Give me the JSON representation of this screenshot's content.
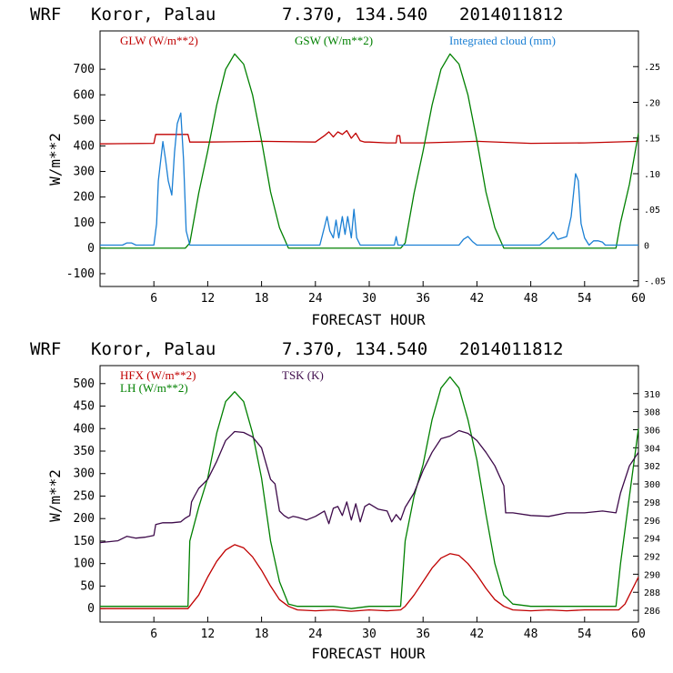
{
  "chart_data": [
    {
      "type": "line",
      "header": {
        "model": "WRF",
        "location": "Koror, Palau",
        "coords": "7.370, 134.540",
        "init": "2014011812"
      },
      "xlabel": "FORECAST HOUR",
      "ylabel": "W/m**2",
      "xlim": [
        0,
        60
      ],
      "ylim": [
        -150,
        850
      ],
      "y2lim": [
        -0.058,
        0.3
      ],
      "xticks": [
        "6",
        "12",
        "18",
        "24",
        "30",
        "36",
        "42",
        "48",
        "54",
        "60"
      ],
      "yticks": [
        "-100",
        "0",
        "100",
        "200",
        "300",
        "400",
        "500",
        "600",
        "700"
      ],
      "y2ticks": [
        "-.05",
        "0",
        ".05",
        ".10",
        ".15",
        ".20",
        ".25"
      ],
      "series": [
        {
          "name": "GLW (W/m**2)",
          "color": "#c00000",
          "axis": "left",
          "x": [
            0,
            6,
            6.2,
            9.8,
            10,
            12,
            18,
            24,
            25,
            25.5,
            26,
            26.5,
            27,
            27.5,
            28,
            28.5,
            29,
            29.5,
            30,
            32,
            33,
            33.1,
            33.4,
            33.5,
            36,
            42,
            48,
            54,
            60
          ],
          "y": [
            408,
            410,
            445,
            445,
            415,
            415,
            418,
            415,
            440,
            455,
            435,
            455,
            445,
            460,
            430,
            450,
            420,
            415,
            415,
            412,
            412,
            440,
            440,
            412,
            412,
            418,
            410,
            412,
            418
          ]
        },
        {
          "name": "GSW (W/m**2)",
          "color": "#008000",
          "axis": "left",
          "x": [
            0,
            9.5,
            10,
            11,
            12,
            13,
            14,
            15,
            16,
            17,
            18,
            19,
            20,
            21,
            22,
            33.5,
            34,
            35,
            36,
            37,
            38,
            39,
            40,
            41,
            42,
            43,
            44,
            45,
            46,
            57.5,
            58,
            59,
            60
          ],
          "y": [
            0,
            0,
            20,
            215,
            380,
            560,
            700,
            760,
            720,
            600,
            420,
            220,
            80,
            0,
            0,
            0,
            20,
            215,
            380,
            560,
            700,
            760,
            720,
            600,
            420,
            220,
            80,
            0,
            0,
            0,
            100,
            250,
            450
          ]
        },
        {
          "name": "Integrated cloud (mm)",
          "color": "#1a7fd4",
          "axis": "right",
          "x": [
            0,
            2.5,
            3,
            3.5,
            4,
            6,
            6.3,
            6.5,
            7,
            7.3,
            7.6,
            8,
            8.3,
            8.6,
            9,
            9.3,
            9.6,
            10,
            10.2,
            24.5,
            25,
            25.3,
            25.6,
            26,
            26.3,
            26.6,
            27,
            27.3,
            27.6,
            28,
            28.3,
            28.6,
            29,
            32.8,
            33,
            33.2,
            36,
            40,
            40.5,
            41,
            41.5,
            42,
            49,
            50,
            50.5,
            51,
            52,
            52.5,
            53,
            53.3,
            53.6,
            54,
            54.5,
            55,
            55.5,
            56,
            56.3,
            60
          ],
          "y": [
            0,
            0,
            0.003,
            0.003,
            0,
            0,
            0.03,
            0.09,
            0.145,
            0.12,
            0.09,
            0.07,
            0.13,
            0.17,
            0.185,
            0.12,
            0.02,
            0,
            0,
            0,
            0.025,
            0.04,
            0.02,
            0.01,
            0.035,
            0.01,
            0.04,
            0.015,
            0.04,
            0.01,
            0.05,
            0.01,
            0,
            0,
            0.012,
            0,
            0,
            0,
            0.008,
            0.012,
            0.005,
            0,
            0,
            0.01,
            0.018,
            0.008,
            0.012,
            0.04,
            0.1,
            0.09,
            0.03,
            0.01,
            0,
            0.006,
            0.006,
            0.004,
            0,
            0
          ]
        }
      ]
    },
    {
      "type": "line",
      "header": {
        "model": "WRF",
        "location": "Koror, Palau",
        "coords": "7.370, 134.540",
        "init": "2014011812"
      },
      "xlabel": "FORECAST HOUR",
      "ylabel": "W/m**2",
      "xlim": [
        0,
        60
      ],
      "ylim": [
        -30,
        540
      ],
      "y2lim": [
        284.7,
        313.1
      ],
      "xticks": [
        "6",
        "12",
        "18",
        "24",
        "30",
        "36",
        "42",
        "48",
        "54",
        "60"
      ],
      "yticks": [
        "0",
        "50",
        "100",
        "150",
        "200",
        "250",
        "300",
        "350",
        "400",
        "450",
        "500"
      ],
      "y2ticks": [
        "286",
        "288",
        "290",
        "292",
        "294",
        "296",
        "298",
        "300",
        "302",
        "304",
        "306",
        "308",
        "310"
      ],
      "series": [
        {
          "name": "HFX (W/m**2)",
          "color": "#c00000",
          "axis": "left",
          "x": [
            0,
            9.8,
            10,
            11,
            12,
            13,
            14,
            15,
            16,
            17,
            18,
            19,
            20,
            21,
            22,
            24,
            26,
            28,
            30,
            32,
            33.5,
            34,
            35,
            36,
            37,
            38,
            39,
            40,
            41,
            42,
            43,
            44,
            45,
            46,
            48,
            50,
            52,
            54,
            56,
            57.8,
            58.5,
            59,
            60
          ],
          "y": [
            0,
            0,
            5,
            30,
            70,
            105,
            130,
            142,
            135,
            115,
            85,
            50,
            20,
            5,
            -3,
            -5,
            -3,
            -6,
            -3,
            -5,
            -3,
            5,
            30,
            60,
            90,
            112,
            122,
            118,
            100,
            75,
            45,
            20,
            5,
            -3,
            -5,
            -3,
            -5,
            -3,
            -3,
            -3,
            10,
            30,
            70
          ]
        },
        {
          "name": "LH (W/m**2)",
          "color": "#008000",
          "axis": "left",
          "x": [
            0,
            6,
            9.8,
            10,
            11,
            12,
            13,
            14,
            15,
            16,
            17,
            18,
            19,
            20,
            21,
            22,
            24,
            26,
            28,
            30,
            32,
            33.5,
            34,
            35,
            36,
            37,
            38,
            39,
            40,
            41,
            42,
            43,
            44,
            45,
            46,
            48,
            50,
            52,
            54,
            56,
            57.5,
            58,
            59,
            60
          ],
          "y": [
            5,
            5,
            5,
            150,
            225,
            290,
            390,
            460,
            482,
            460,
            390,
            290,
            150,
            60,
            10,
            5,
            5,
            5,
            0,
            5,
            5,
            5,
            150,
            250,
            320,
            420,
            490,
            515,
            490,
            420,
            330,
            210,
            100,
            30,
            10,
            5,
            5,
            5,
            5,
            5,
            5,
            100,
            250,
            400
          ]
        },
        {
          "name": "TSK (K)",
          "color": "#3d0a4a",
          "axis": "right",
          "x": [
            0,
            1,
            2,
            3,
            4,
            5,
            6,
            6.2,
            7,
            8,
            9,
            9.5,
            10,
            10.2,
            10.5,
            11,
            12,
            13,
            14,
            15,
            16,
            17,
            18,
            19,
            19.5,
            20,
            20.5,
            21,
            21.5,
            22,
            23,
            24,
            25,
            25.5,
            26,
            26.5,
            27,
            27.5,
            28,
            28.5,
            29,
            29.5,
            30,
            31,
            32,
            32.5,
            33,
            33.5,
            34,
            35,
            36,
            37,
            38,
            39,
            40,
            41,
            42,
            43,
            44,
            45,
            45.2,
            46,
            48,
            50,
            52,
            54,
            56,
            57.5,
            58,
            59,
            60
          ],
          "y": [
            293.5,
            293.6,
            293.7,
            294.2,
            294.0,
            294.1,
            294.3,
            295.5,
            295.7,
            295.7,
            295.8,
            296.2,
            296.5,
            298.0,
            298.6,
            299.5,
            300.5,
            302.5,
            304.8,
            305.8,
            305.7,
            305.2,
            304.0,
            300.5,
            300.0,
            297.0,
            296.5,
            296.2,
            296.4,
            296.3,
            296.0,
            296.4,
            297.0,
            295.6,
            297.3,
            297.5,
            296.5,
            298.0,
            296.0,
            297.8,
            295.8,
            297.5,
            297.8,
            297.2,
            297.0,
            295.8,
            296.6,
            296.0,
            297.4,
            299.0,
            301.5,
            303.5,
            305.0,
            305.3,
            305.9,
            305.6,
            304.8,
            303.5,
            302.0,
            299.8,
            296.8,
            296.8,
            296.5,
            296.4,
            296.8,
            296.8,
            297.0,
            296.8,
            299.0,
            302.0,
            303.5
          ]
        }
      ]
    }
  ]
}
